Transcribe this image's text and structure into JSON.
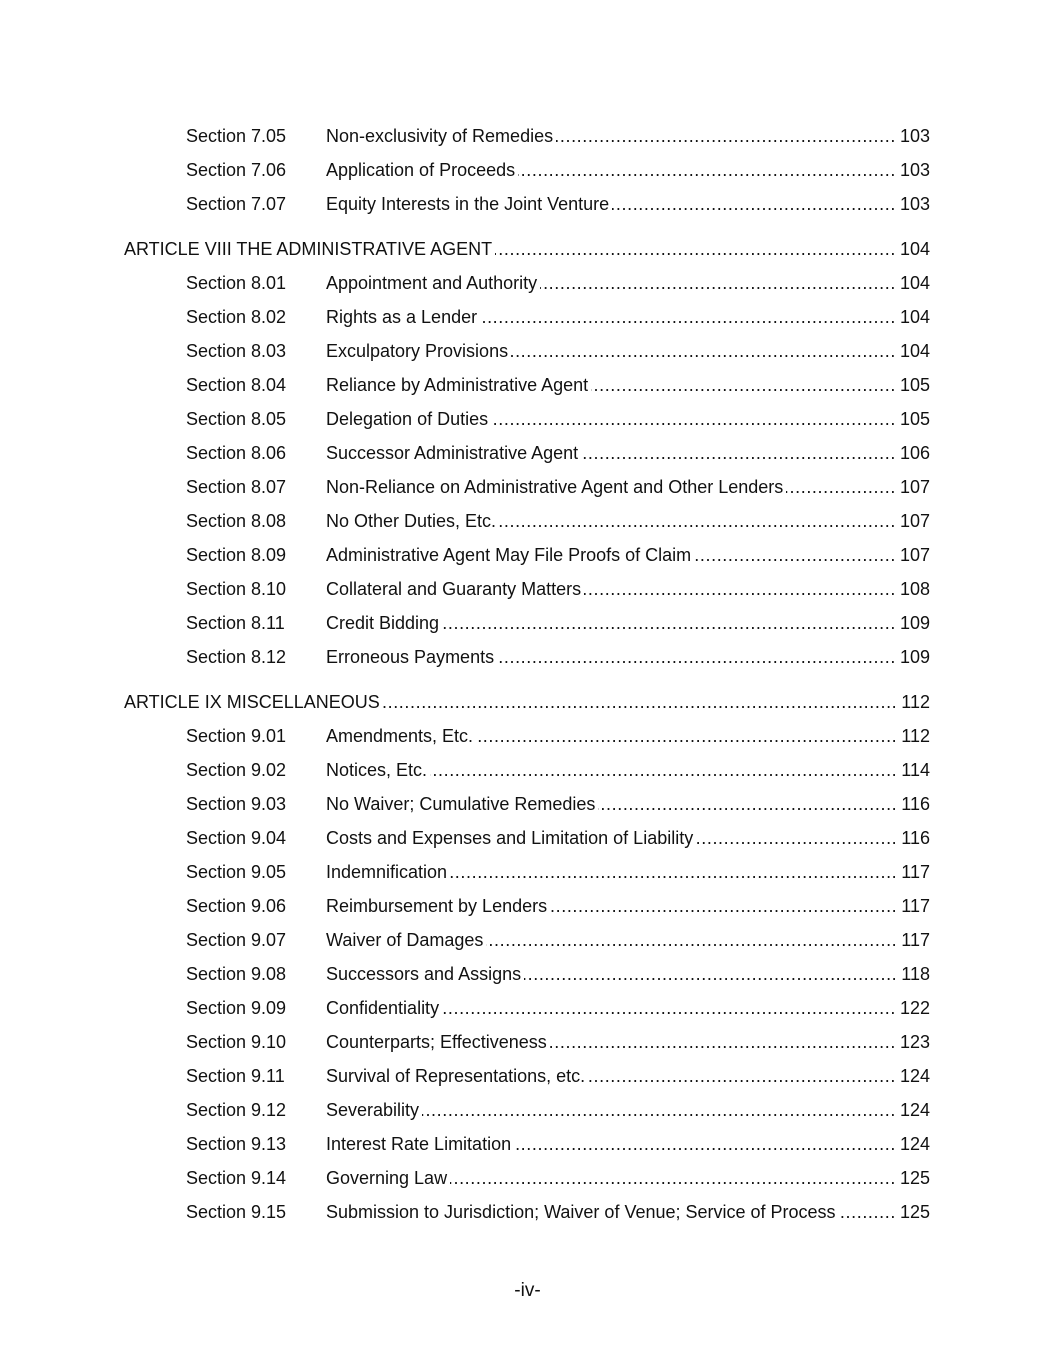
{
  "entries": [
    {
      "type": "section",
      "number": "Section 7.05",
      "title": "Non-exclusivity of Remedies",
      "page": "103"
    },
    {
      "type": "section",
      "number": "Section 7.06",
      "title": "Application of Proceeds",
      "page": "103"
    },
    {
      "type": "section",
      "number": "Section 7.07",
      "title": "Equity Interests in the Joint Venture",
      "page": "103"
    },
    {
      "type": "article",
      "title": "ARTICLE VIII THE ADMINISTRATIVE AGENT",
      "page": "104"
    },
    {
      "type": "section",
      "number": "Section 8.01",
      "title": "Appointment and Authority",
      "page": "104"
    },
    {
      "type": "section",
      "number": "Section 8.02",
      "title": "Rights as a Lender",
      "page": "104"
    },
    {
      "type": "section",
      "number": "Section 8.03",
      "title": "Exculpatory Provisions",
      "page": "104"
    },
    {
      "type": "section",
      "number": "Section 8.04",
      "title": "Reliance by Administrative Agent",
      "page": "105"
    },
    {
      "type": "section",
      "number": "Section 8.05",
      "title": "Delegation of Duties",
      "page": "105"
    },
    {
      "type": "section",
      "number": "Section 8.06",
      "title": "Successor Administrative Agent",
      "page": "106"
    },
    {
      "type": "section",
      "number": "Section 8.07",
      "title": "Non-Reliance on Administrative Agent and Other Lenders",
      "page": "107"
    },
    {
      "type": "section",
      "number": "Section 8.08",
      "title": "No Other Duties, Etc.",
      "page": "107"
    },
    {
      "type": "section",
      "number": "Section 8.09",
      "title": "Administrative Agent May File Proofs of Claim",
      "page": "107"
    },
    {
      "type": "section",
      "number": "Section 8.10",
      "title": "Collateral and Guaranty Matters",
      "page": "108"
    },
    {
      "type": "section",
      "number": "Section 8.11",
      "title": "Credit Bidding",
      "page": "109"
    },
    {
      "type": "section",
      "number": "Section 8.12",
      "title": "Erroneous Payments",
      "page": "109"
    },
    {
      "type": "article",
      "title": "ARTICLE IX MISCELLANEOUS",
      "page": "112"
    },
    {
      "type": "section",
      "number": "Section 9.01",
      "title": "Amendments, Etc.",
      "page": "112"
    },
    {
      "type": "section",
      "number": "Section 9.02",
      "title": "Notices, Etc.",
      "page": "114"
    },
    {
      "type": "section",
      "number": "Section 9.03",
      "title": "No Waiver; Cumulative Remedies",
      "page": "116"
    },
    {
      "type": "section",
      "number": "Section 9.04",
      "title": "Costs and Expenses and Limitation of Liability",
      "page": "116"
    },
    {
      "type": "section",
      "number": "Section 9.05",
      "title": "Indemnification",
      "page": "117"
    },
    {
      "type": "section",
      "number": "Section 9.06",
      "title": "Reimbursement by Lenders",
      "page": "117"
    },
    {
      "type": "section",
      "number": "Section 9.07",
      "title": "Waiver of Damages",
      "page": "117"
    },
    {
      "type": "section",
      "number": "Section 9.08",
      "title": "Successors and Assigns",
      "page": "118"
    },
    {
      "type": "section",
      "number": "Section 9.09",
      "title": "Confidentiality",
      "page": "122"
    },
    {
      "type": "section",
      "number": "Section 9.10",
      "title": "Counterparts; Effectiveness",
      "page": "123"
    },
    {
      "type": "section",
      "number": "Section 9.11",
      "title": "Survival of Representations, etc.",
      "page": "124"
    },
    {
      "type": "section",
      "number": "Section 9.12",
      "title": "Severability",
      "page": "124"
    },
    {
      "type": "section",
      "number": "Section 9.13",
      "title": "Interest Rate Limitation",
      "page": "124"
    },
    {
      "type": "section",
      "number": "Section 9.14",
      "title": "Governing Law",
      "page": "125"
    },
    {
      "type": "section",
      "number": "Section 9.15",
      "title": "Submission to Jurisdiction; Waiver of Venue; Service of Process",
      "page": "125"
    }
  ],
  "footer": {
    "page_label": "-iv-"
  }
}
